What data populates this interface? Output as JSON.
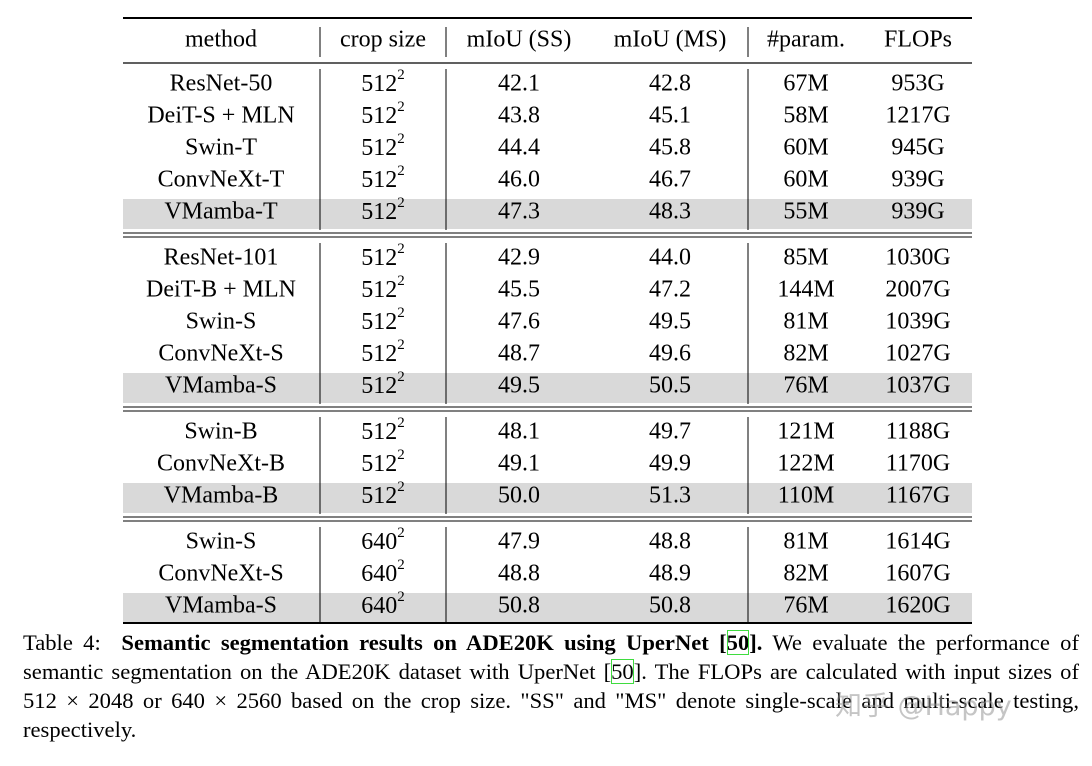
{
  "table": {
    "header": [
      "method",
      "crop size",
      "mIoU (SS)",
      "mIoU (MS)",
      "#param.",
      "FLOPs"
    ],
    "groups": [
      {
        "rows": [
          {
            "method": "ResNet-50",
            "crop": {
              "base": "512",
              "exp": "2"
            },
            "miou_ss": "42.1",
            "miou_ms": "42.8",
            "params": "67M",
            "flops": "953G",
            "highlight": false
          },
          {
            "method": "DeiT-S + MLN",
            "crop": {
              "base": "512",
              "exp": "2"
            },
            "miou_ss": "43.8",
            "miou_ms": "45.1",
            "params": "58M",
            "flops": "1217G",
            "highlight": false
          },
          {
            "method": "Swin-T",
            "crop": {
              "base": "512",
              "exp": "2"
            },
            "miou_ss": "44.4",
            "miou_ms": "45.8",
            "params": "60M",
            "flops": "945G",
            "highlight": false
          },
          {
            "method": "ConvNeXt-T",
            "crop": {
              "base": "512",
              "exp": "2"
            },
            "miou_ss": "46.0",
            "miou_ms": "46.7",
            "params": "60M",
            "flops": "939G",
            "highlight": false
          },
          {
            "method": "VMamba-T",
            "crop": {
              "base": "512",
              "exp": "2"
            },
            "miou_ss": "47.3",
            "miou_ms": "48.3",
            "params": "55M",
            "flops": "939G",
            "highlight": true
          }
        ]
      },
      {
        "rows": [
          {
            "method": "ResNet-101",
            "crop": {
              "base": "512",
              "exp": "2"
            },
            "miou_ss": "42.9",
            "miou_ms": "44.0",
            "params": "85M",
            "flops": "1030G",
            "highlight": false
          },
          {
            "method": "DeiT-B + MLN",
            "crop": {
              "base": "512",
              "exp": "2"
            },
            "miou_ss": "45.5",
            "miou_ms": "47.2",
            "params": "144M",
            "flops": "2007G",
            "highlight": false
          },
          {
            "method": "Swin-S",
            "crop": {
              "base": "512",
              "exp": "2"
            },
            "miou_ss": "47.6",
            "miou_ms": "49.5",
            "params": "81M",
            "flops": "1039G",
            "highlight": false
          },
          {
            "method": "ConvNeXt-S",
            "crop": {
              "base": "512",
              "exp": "2"
            },
            "miou_ss": "48.7",
            "miou_ms": "49.6",
            "params": "82M",
            "flops": "1027G",
            "highlight": false
          },
          {
            "method": "VMamba-S",
            "crop": {
              "base": "512",
              "exp": "2"
            },
            "miou_ss": "49.5",
            "miou_ms": "50.5",
            "params": "76M",
            "flops": "1037G",
            "highlight": true
          }
        ]
      },
      {
        "rows": [
          {
            "method": "Swin-B",
            "crop": {
              "base": "512",
              "exp": "2"
            },
            "miou_ss": "48.1",
            "miou_ms": "49.7",
            "params": "121M",
            "flops": "1188G",
            "highlight": false
          },
          {
            "method": "ConvNeXt-B",
            "crop": {
              "base": "512",
              "exp": "2"
            },
            "miou_ss": "49.1",
            "miou_ms": "49.9",
            "params": "122M",
            "flops": "1170G",
            "highlight": false
          },
          {
            "method": "VMamba-B",
            "crop": {
              "base": "512",
              "exp": "2"
            },
            "miou_ss": "50.0",
            "miou_ms": "51.3",
            "params": "110M",
            "flops": "1167G",
            "highlight": true
          }
        ]
      },
      {
        "rows": [
          {
            "method": "Swin-S",
            "crop": {
              "base": "640",
              "exp": "2"
            },
            "miou_ss": "47.9",
            "miou_ms": "48.8",
            "params": "81M",
            "flops": "1614G",
            "highlight": false
          },
          {
            "method": "ConvNeXt-S",
            "crop": {
              "base": "640",
              "exp": "2"
            },
            "miou_ss": "48.8",
            "miou_ms": "48.9",
            "params": "82M",
            "flops": "1607G",
            "highlight": false
          },
          {
            "method": "VMamba-S",
            "crop": {
              "base": "640",
              "exp": "2"
            },
            "miou_ss": "50.8",
            "miou_ms": "50.8",
            "params": "76M",
            "flops": "1620G",
            "highlight": true
          }
        ]
      }
    ]
  },
  "caption": {
    "label": "Table 4:",
    "bold": "Semantic segmentation results on ADE20K using UperNet [",
    "ref1": "50",
    "bold_end": "].",
    "text1": "We evaluate the performance of semantic segmentation on the ADE20K dataset with UperNet [",
    "ref2": "50",
    "text2": "]. The FLOPs are calculated with input sizes of 512 × 2048 or 640 × 2560 based on the crop size. \"SS\" and \"MS\" denote single-scale and multi-scale testing, respectively."
  },
  "watermark": "知乎 @Happy"
}
